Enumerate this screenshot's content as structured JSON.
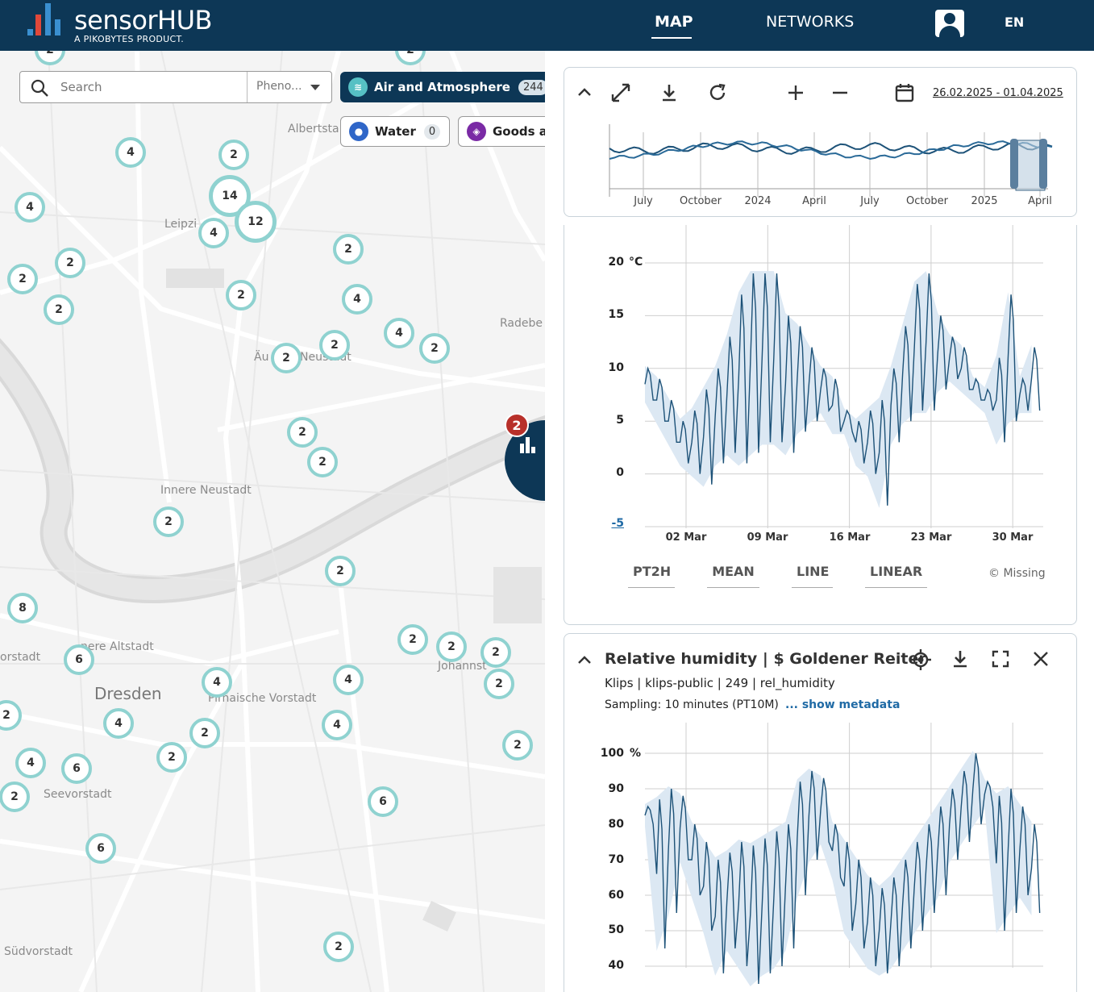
{
  "header": {
    "brand_a": "sensor",
    "brand_b": "HUB",
    "tagline": "A PIKOBYTES PRODUCT.",
    "nav": {
      "map": "MAP",
      "networks": "NETWORKS"
    },
    "language": "EN"
  },
  "map": {
    "search": {
      "placeholder": "Search",
      "phenomenon": "Pheno..."
    },
    "chips": {
      "air": {
        "label": "Air and Atmosphere",
        "count": "244"
      },
      "water": {
        "label": "Water",
        "count": "0"
      },
      "goods": {
        "label": "Goods a"
      }
    },
    "places": [
      "Albertsta",
      "Leipzi",
      "Radebe",
      "Äu",
      "Neustadt",
      "Innere Neustadt",
      "nere Altstadt",
      "orstadt",
      "Dresden",
      "Pirnaische Vorstadt",
      "Johannst",
      "Seevorstadt",
      "Südvorstadt"
    ],
    "clusters": [
      "2",
      "2",
      "4",
      "2",
      "4",
      "14",
      "12",
      "4",
      "2",
      "2",
      "2",
      "2",
      "2",
      "4",
      "2",
      "4",
      "2",
      "2",
      "2",
      "2",
      "8",
      "2",
      "6",
      "4",
      "2",
      "2",
      "2",
      "2",
      "2",
      "4",
      "4",
      "2",
      "2",
      "4",
      "6",
      "2",
      "2",
      "6",
      "6",
      "2"
    ],
    "chart_badge": "2"
  },
  "timeline": {
    "date_range": "26.02.2025 - 01.04.2025",
    "ticks": [
      "July",
      "October",
      "2024",
      "April",
      "July",
      "October",
      "2025",
      "April"
    ]
  },
  "chart1": {
    "unit": "°C",
    "y_ticks": [
      "20",
      "15",
      "10",
      "5",
      "0",
      "-5"
    ],
    "x_ticks": [
      "02 Mar",
      "09 Mar",
      "16 Mar",
      "23 Mar",
      "30 Mar"
    ],
    "options": [
      "PT2H",
      "MEAN",
      "LINE",
      "LINEAR"
    ],
    "copyright": "© Missing"
  },
  "chart2": {
    "title": "Relative humidity | $ Goldener Reiter",
    "meta": "Klips | klips-public | 249 | rel_humidity",
    "sampling": "Sampling: 10 minutes (PT10M)",
    "metadata_link": "... show metadata",
    "unit": "%",
    "y_ticks": [
      "100",
      "90",
      "80",
      "70",
      "60",
      "50",
      "40"
    ]
  },
  "chart_data": [
    {
      "type": "line",
      "ylim": [
        -5,
        20
      ],
      "y_ticks": [
        20,
        15,
        10,
        5,
        0,
        -5
      ],
      "x_ticks": [
        "02 Mar",
        "09 Mar",
        "16 Mar",
        "23 Mar",
        "30 Mar"
      ],
      "x": [
        "2025-02-27",
        "2025-02-28",
        "2025-03-01",
        "2025-03-02",
        "2025-03-03",
        "2025-03-04",
        "2025-03-05",
        "2025-03-06",
        "2025-03-07",
        "2025-03-08",
        "2025-03-09",
        "2025-03-10",
        "2025-03-11",
        "2025-03-12",
        "2025-03-13",
        "2025-03-14",
        "2025-03-15",
        "2025-03-16",
        "2025-03-17",
        "2025-03-18",
        "2025-03-19",
        "2025-03-20",
        "2025-03-21",
        "2025-03-22",
        "2025-03-23",
        "2025-03-24",
        "2025-03-25",
        "2025-03-26",
        "2025-03-27",
        "2025-03-28",
        "2025-03-29",
        "2025-03-30",
        "2025-03-31",
        "2025-04-01"
      ],
      "series": [
        {
          "min": [
            7,
            5,
            3,
            1,
            0,
            -1,
            1,
            2,
            1,
            2,
            3,
            3,
            2,
            4,
            5,
            6,
            4,
            4,
            1,
            0,
            -3,
            3,
            5,
            6,
            6,
            8,
            9,
            8,
            7,
            6,
            3,
            5,
            6,
            6
          ],
          "max": [
            10,
            9,
            7,
            5,
            6,
            8,
            10,
            13,
            17,
            19,
            19,
            19,
            15,
            14,
            12,
            10,
            9,
            6,
            5,
            6,
            7,
            10,
            14,
            18,
            19,
            15,
            13,
            12,
            9,
            8,
            11,
            17,
            9,
            12
          ]
        }
      ]
    },
    {
      "type": "line",
      "ylim": [
        40,
        100
      ],
      "y_ticks": [
        100,
        90,
        80,
        70,
        60,
        50,
        40
      ],
      "series": [
        {
          "min": [
            80,
            45,
            55,
            70,
            60,
            50,
            38,
            45,
            40,
            35,
            38,
            40,
            45,
            60,
            70,
            75,
            65,
            50,
            45,
            40,
            38,
            40,
            45,
            50,
            55,
            60,
            70,
            75,
            80,
            85,
            50,
            55,
            60,
            55
          ],
          "max": [
            85,
            87,
            90,
            88,
            80,
            75,
            70,
            72,
            75,
            74,
            76,
            78,
            80,
            92,
            95,
            93,
            80,
            75,
            70,
            65,
            62,
            65,
            70,
            75,
            80,
            85,
            90,
            95,
            100,
            92,
            88,
            90,
            85,
            80
          ]
        }
      ]
    }
  ]
}
